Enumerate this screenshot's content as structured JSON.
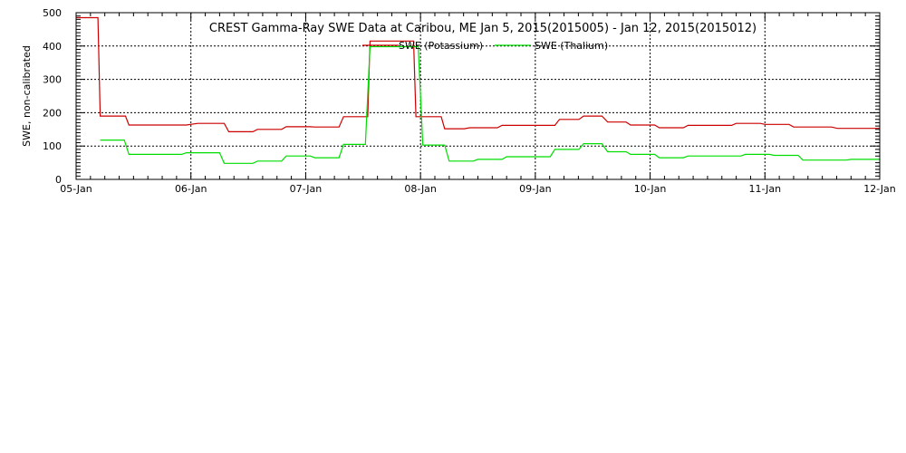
{
  "chart_data": {
    "type": "line",
    "title": "CREST Gamma-Ray SWE Data at Caribou, ME   Jan  5, 2015(2015005) - Jan 12, 2015(2015012)",
    "xlabel": "",
    "ylabel": "SWE, non-calibrated",
    "xlim": [
      0,
      7
    ],
    "ylim": [
      0,
      500
    ],
    "x_tick_labels": [
      "05-Jan",
      "06-Jan",
      "07-Jan",
      "08-Jan",
      "09-Jan",
      "10-Jan",
      "11-Jan",
      "12-Jan"
    ],
    "y_tick_labels": [
      "0",
      "100",
      "200",
      "300",
      "400",
      "500"
    ],
    "grid": true,
    "legend_position": "top-center",
    "series": [
      {
        "name": "SWE (Potassium)",
        "color": "#cc0000",
        "points": [
          [
            0.0,
            485
          ],
          [
            0.19,
            485
          ],
          [
            0.21,
            190
          ],
          [
            0.43,
            190
          ],
          [
            0.46,
            163
          ],
          [
            0.96,
            163
          ],
          [
            1.06,
            168
          ],
          [
            1.29,
            168
          ],
          [
            1.33,
            143
          ],
          [
            1.54,
            143
          ],
          [
            1.58,
            150
          ],
          [
            1.79,
            150
          ],
          [
            1.83,
            158
          ],
          [
            2.04,
            158
          ],
          [
            2.08,
            157
          ],
          [
            2.29,
            157
          ],
          [
            2.33,
            188
          ],
          [
            2.54,
            188
          ],
          [
            2.56,
            415
          ],
          [
            2.94,
            415
          ],
          [
            2.96,
            188
          ],
          [
            3.18,
            188
          ],
          [
            3.21,
            152
          ],
          [
            3.38,
            152
          ],
          [
            3.43,
            155
          ],
          [
            3.67,
            155
          ],
          [
            3.71,
            162
          ],
          [
            4.17,
            162
          ],
          [
            4.21,
            180
          ],
          [
            4.38,
            180
          ],
          [
            4.42,
            190
          ],
          [
            4.58,
            190
          ],
          [
            4.63,
            172
          ],
          [
            4.79,
            172
          ],
          [
            4.83,
            163
          ],
          [
            5.04,
            163
          ],
          [
            5.08,
            155
          ],
          [
            5.29,
            155
          ],
          [
            5.33,
            162
          ],
          [
            5.71,
            162
          ],
          [
            5.75,
            168
          ],
          [
            5.96,
            168
          ],
          [
            6.0,
            165
          ],
          [
            6.21,
            165
          ],
          [
            6.25,
            157
          ],
          [
            6.58,
            157
          ],
          [
            6.63,
            153
          ],
          [
            7.0,
            153
          ]
        ]
      },
      {
        "name": "SWE (Thalium)",
        "color": "#00dd00",
        "points": [
          [
            0.21,
            118
          ],
          [
            0.42,
            118
          ],
          [
            0.46,
            75
          ],
          [
            0.92,
            75
          ],
          [
            0.96,
            80
          ],
          [
            1.25,
            80
          ],
          [
            1.29,
            48
          ],
          [
            1.54,
            48
          ],
          [
            1.58,
            55
          ],
          [
            1.79,
            55
          ],
          [
            1.83,
            70
          ],
          [
            2.04,
            70
          ],
          [
            2.08,
            65
          ],
          [
            2.29,
            65
          ],
          [
            2.33,
            105
          ],
          [
            2.52,
            105
          ],
          [
            2.56,
            398
          ],
          [
            2.98,
            398
          ],
          [
            3.02,
            103
          ],
          [
            3.21,
            103
          ],
          [
            3.25,
            55
          ],
          [
            3.46,
            55
          ],
          [
            3.5,
            60
          ],
          [
            3.71,
            60
          ],
          [
            3.75,
            68
          ],
          [
            4.13,
            68
          ],
          [
            4.17,
            90
          ],
          [
            4.38,
            90
          ],
          [
            4.42,
            107
          ],
          [
            4.58,
            107
          ],
          [
            4.63,
            83
          ],
          [
            4.79,
            83
          ],
          [
            4.83,
            75
          ],
          [
            5.04,
            75
          ],
          [
            5.08,
            65
          ],
          [
            5.29,
            65
          ],
          [
            5.33,
            70
          ],
          [
            5.79,
            70
          ],
          [
            5.83,
            75
          ],
          [
            6.04,
            75
          ],
          [
            6.08,
            72
          ],
          [
            6.29,
            72
          ],
          [
            6.33,
            58
          ],
          [
            6.71,
            58
          ],
          [
            6.75,
            60
          ],
          [
            7.0,
            60
          ]
        ]
      }
    ]
  }
}
